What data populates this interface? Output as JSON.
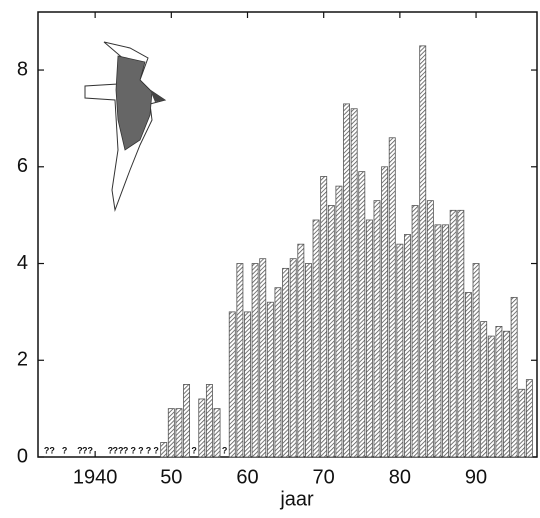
{
  "chart_data": {
    "type": "bar",
    "x_label": "jaar",
    "x": [
      1934,
      1935,
      1936,
      1937,
      1938,
      1939,
      1940,
      1941,
      1942,
      1943,
      1944,
      1945,
      1946,
      1947,
      1948,
      1949,
      1950,
      1951,
      1952,
      1953,
      1954,
      1955,
      1956,
      1957,
      1958,
      1959,
      1960,
      1961,
      1962,
      1963,
      1964,
      1965,
      1966,
      1967,
      1968,
      1969,
      1970,
      1971,
      1972,
      1973,
      1974,
      1975,
      1976,
      1977,
      1978,
      1979,
      1980,
      1981,
      1982,
      1983,
      1984,
      1985,
      1986,
      1987,
      1988,
      1989,
      1990,
      1991,
      1992,
      1993,
      1994,
      1995,
      1996,
      1997
    ],
    "values": [
      null,
      null,
      null,
      null,
      null,
      null,
      null,
      null,
      null,
      null,
      null,
      null,
      null,
      null,
      null,
      0.3,
      1.0,
      1.0,
      1.5,
      null,
      1.2,
      1.5,
      1.0,
      null,
      3.0,
      4.0,
      3.0,
      4.0,
      4.1,
      3.2,
      3.5,
      3.9,
      4.1,
      4.4,
      4.0,
      4.9,
      5.8,
      5.2,
      5.6,
      7.3,
      7.2,
      5.9,
      4.9,
      5.3,
      6.0,
      6.6,
      4.4,
      4.6,
      5.2,
      8.5,
      5.3,
      4.8,
      4.8,
      5.1,
      5.1,
      3.4,
      4.0,
      2.8,
      2.5,
      2.7,
      2.6,
      3.3,
      1.4,
      1.6
    ],
    "value_labels": [
      "??",
      null,
      "?",
      null,
      "?",
      "??",
      null,
      null,
      "?",
      "??",
      "?",
      "?",
      "?",
      "?",
      "?",
      null,
      null,
      null,
      null,
      "?",
      null,
      null,
      null,
      "?",
      null,
      null,
      null,
      null,
      null,
      null,
      null,
      null,
      null,
      null,
      null,
      null,
      null,
      null,
      null,
      null,
      null,
      null,
      null,
      null,
      null,
      null,
      null,
      null,
      null,
      null,
      null,
      null,
      null,
      null,
      null,
      null,
      null,
      null,
      null,
      null,
      null,
      null,
      null,
      null
    ],
    "color": "#555555",
    "xlim": [
      1932.5,
      1998
    ],
    "xticks": [
      {
        "value": 1940,
        "label": "1940"
      },
      {
        "value": 1950,
        "label": "50"
      },
      {
        "value": 1960,
        "label": "60"
      },
      {
        "value": 1970,
        "label": "70"
      },
      {
        "value": 1980,
        "label": "80"
      },
      {
        "value": 1990,
        "label": "90"
      }
    ],
    "ylim": [
      0,
      9.2
    ],
    "yticks": [
      0,
      2,
      4,
      6,
      8
    ],
    "grid": false
  }
}
